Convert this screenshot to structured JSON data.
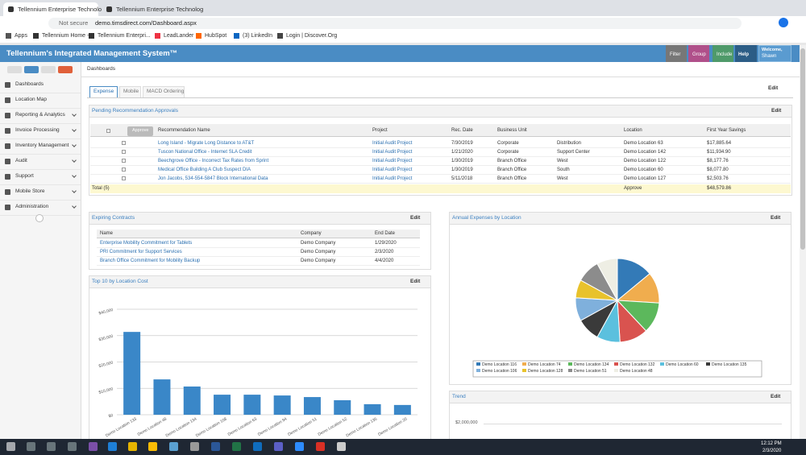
{
  "browser": {
    "tabs": [
      "Tellennium Enterprise Technolog",
      "Tellennium Enterprise Technolog"
    ],
    "security": "Not secure",
    "url": "demo.timsdirect.com/Dashboard.aspx",
    "bookmarks": [
      "Apps",
      "Tellennium Home -...",
      "Tellennium Enterpri...",
      "LeadLander",
      "HubSpot",
      "(3) LinkedIn",
      "Login | Discover.Org"
    ]
  },
  "app": {
    "title": "Tellennium's Integrated Management System™",
    "buttons": [
      "Filter",
      "Group",
      "Include",
      "Help"
    ],
    "user": {
      "greeting": "Welcome,",
      "name": "Shawn"
    }
  },
  "sidebar": [
    "Dashboards",
    "Location Map",
    "Reporting & Analytics",
    "Invoice Processing",
    "Inventory Management",
    "Audit",
    "Support",
    "Mobile Store",
    "Administration"
  ],
  "breadcrumb": "Dashboards",
  "dashboard_tabs": [
    "Expense",
    "Mobile",
    "MACD Ordering"
  ],
  "edit": "Edit",
  "recommendations": {
    "title": "Pending Recommendation Approvals",
    "approve_button": "Approve",
    "columns": [
      "Recommendation Name",
      "Project",
      "Rec. Date",
      "Business Unit",
      "Location",
      "First Year Savings"
    ],
    "rows": [
      [
        "Long Island - Migrate Long Distance to AT&T",
        "Initial Audit Project",
        "7/30/2019",
        "Corporate",
        "Distribution",
        "Demo Location 63",
        "$17,885.64"
      ],
      [
        "Tuscon National Office - Internet SLA Credit",
        "Initial Audit Project",
        "1/21/2020",
        "Corporate",
        "Support Center",
        "Demo Location 142",
        "$11,934.90"
      ],
      [
        "Beechgrove Office - Incorrect Tax Rates from Sprint",
        "Initial Audit Project",
        "1/30/2019",
        "Branch Office",
        "West",
        "Demo Location 122",
        "$8,177.76"
      ],
      [
        "Medical Office Building A Club Suspect DIA",
        "Initial Audit Project",
        "1/30/2019",
        "Branch Office",
        "South",
        "Demo Location 60",
        "$8,077.80"
      ],
      [
        "Jon Jacobs, 534-554-5847 Block International Data",
        "Initial Audit Project",
        "5/11/2018",
        "Branch Office",
        "West",
        "Demo Location 127",
        "$2,503.76"
      ]
    ],
    "total": {
      "label": "Total (5)",
      "location": "Approve",
      "savings": "$48,579.86"
    }
  },
  "expiring_contracts": {
    "title": "Expiring Contracts",
    "columns": [
      "Name",
      "Company",
      "End Date"
    ],
    "rows": [
      [
        "Enterprise Mobility Commitment for Tablets",
        "Demo Company",
        "1/29/2020"
      ],
      [
        "PRI Commitment for Support Services",
        "Demo Company",
        "2/3/2020"
      ],
      [
        "Branch Office Commitment for Mobility Backup",
        "Demo Company",
        "4/4/2020"
      ]
    ]
  },
  "chart_data": [
    {
      "type": "bar",
      "title": "Top 10 by Location Cost",
      "categories": [
        "Demo Location 133",
        "Demo Location 48",
        "Demo Location 134",
        "Demo Location 108",
        "Demo Location 63",
        "Demo Location 94",
        "Demo Location 51",
        "Demo Location 52",
        "Demo Location 135",
        "Demo Location 20"
      ],
      "values": [
        31400,
        13400,
        10700,
        7600,
        7600,
        7300,
        6700,
        5500,
        4000,
        3700
      ],
      "color": "#3a87c8",
      "ylim": [
        0,
        40000
      ],
      "yticks": [
        {
          "value": 0,
          "label": "$0"
        },
        {
          "value": 10000,
          "label": "$10,000"
        },
        {
          "value": 20000,
          "label": "$20,000"
        },
        {
          "value": 30000,
          "label": "$30,000"
        },
        {
          "value": 40000,
          "label": "$40,000"
        }
      ],
      "grid": true
    },
    {
      "type": "pie",
      "title": "Annual Expenses by Location",
      "categories": [
        "Demo Location 116",
        "Demo Location 74",
        "Demo Location 134",
        "Demo Location 132",
        "Demo Location 60",
        "Demo Location 135",
        "Demo Location 106",
        "Demo Location 128",
        "Demo Location 51",
        "Demo Location 48"
      ],
      "values": [
        14,
        12,
        12,
        11,
        9,
        9,
        9,
        7,
        9,
        8
      ],
      "colors": [
        "#337ab7",
        "#f0ad4e",
        "#5cb85c",
        "#d9534f",
        "#5bc0de",
        "#3a3a3a",
        "#7fb0dc",
        "#e8c22c",
        "#8c8c8c",
        "#eeeee4"
      ]
    }
  ],
  "trend": {
    "title": "Trend",
    "ytick_label": "$2,000,000"
  },
  "taskbar": {
    "time": "12:12 PM",
    "date": "2/3/2020"
  }
}
